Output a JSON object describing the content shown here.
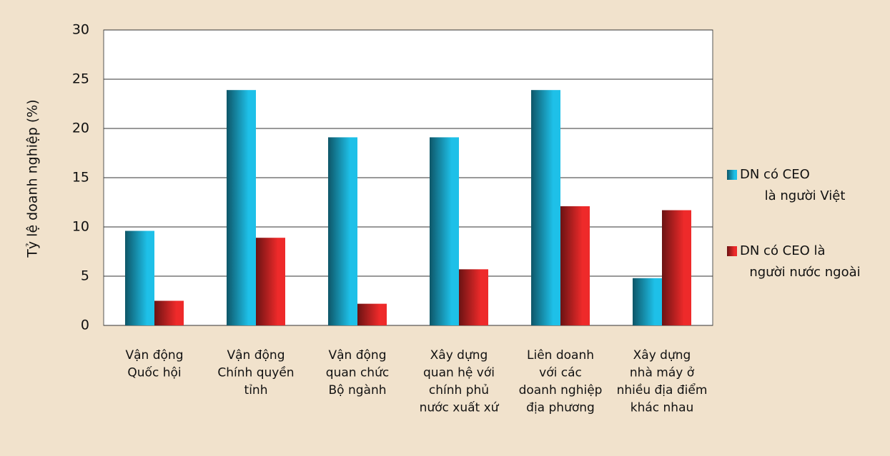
{
  "chart_data": {
    "type": "bar",
    "y_label": "Tỷ lệ doanh nghiệp (%)",
    "categories": [
      [
        "Vận động",
        "Quốc hội"
      ],
      [
        "Vận động",
        "Chính quyền",
        "tỉnh"
      ],
      [
        "Vận động",
        "quan chức",
        "Bộ ngành"
      ],
      [
        "Xây dựng",
        "quan hệ với",
        "chính phủ",
        "nước xuất xứ"
      ],
      [
        "Liên doanh",
        "với các",
        "doanh nghiệp",
        "địa phương"
      ],
      [
        "Xây dựng",
        "nhà máy ở",
        "nhiều địa điểm",
        "khác nhau"
      ]
    ],
    "series": [
      {
        "name": [
          "DN có CEO",
          "là người Việt"
        ],
        "color": "#1ec0e8",
        "values": [
          9.6,
          23.9,
          19.1,
          19.1,
          23.9,
          4.8
        ]
      },
      {
        "name": [
          "DN có CEO là",
          "người nước ngoài"
        ],
        "color": "#ee2a2a",
        "values": [
          2.5,
          8.9,
          2.2,
          5.7,
          12.1,
          11.7
        ]
      }
    ],
    "ylim": [
      0,
      30
    ],
    "yticks": [
      0,
      5,
      10,
      15,
      20,
      25,
      30
    ],
    "grid": true,
    "legend": "right"
  }
}
